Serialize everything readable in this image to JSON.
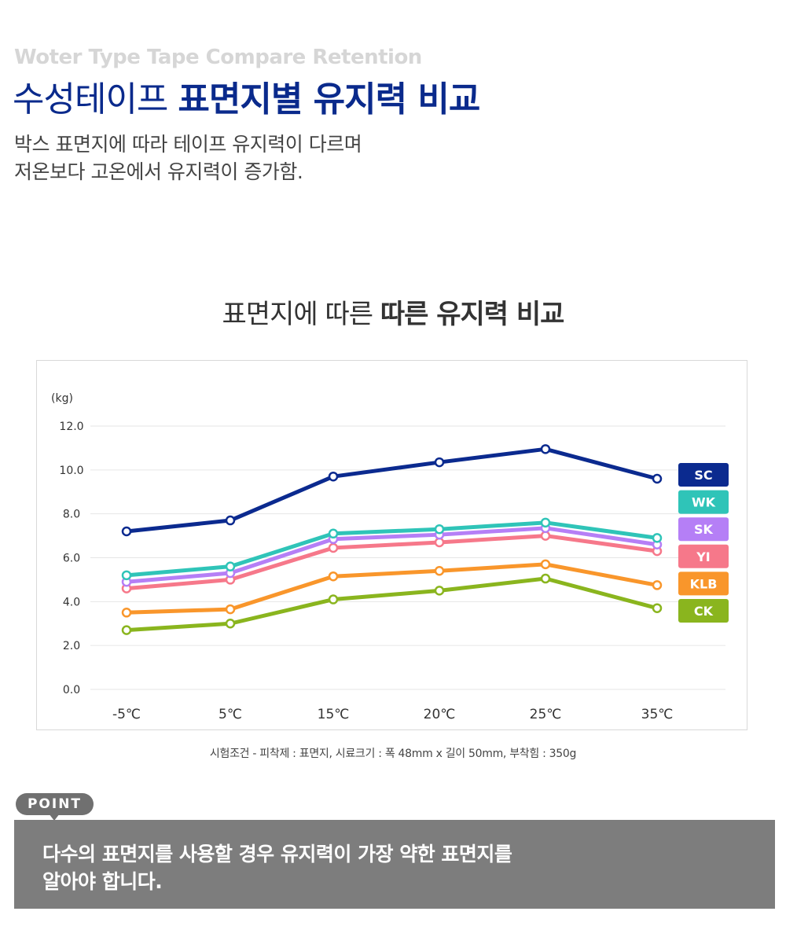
{
  "header": {
    "eng_title": "Woter Type Tape Compare Retention",
    "title_light": "수성테이프 ",
    "title_bold": "표면지별 유지력 비교",
    "desc_line1": "박스 표면지에 따라 테이프 유지력이 다르며",
    "desc_line2": "저온보다 고온에서 유지력이 증가함."
  },
  "chart_heading": {
    "light": "표면지에 따른 ",
    "bold": "따른 유지력 비교"
  },
  "chart_data": {
    "type": "line",
    "ylabel": "(kg)",
    "ylim": [
      0,
      12
    ],
    "yticks": [
      "0.0",
      "2.0",
      "4.0",
      "6.0",
      "8.0",
      "10.0",
      "12.0"
    ],
    "categories": [
      "-5℃",
      "5℃",
      "15℃",
      "20℃",
      "25℃",
      "35℃"
    ],
    "grid": true,
    "legend_position": "right",
    "series": [
      {
        "name": "SC",
        "color": "#0b2a8f",
        "values": [
          7.2,
          7.7,
          9.7,
          10.35,
          10.95,
          9.6
        ]
      },
      {
        "name": "WK",
        "color": "#2fc4b8",
        "values": [
          5.2,
          5.6,
          7.1,
          7.3,
          7.6,
          6.9
        ]
      },
      {
        "name": "SK",
        "color": "#b57ff6",
        "values": [
          4.9,
          5.3,
          6.85,
          7.05,
          7.35,
          6.6
        ]
      },
      {
        "name": "YI",
        "color": "#f6788a",
        "values": [
          4.6,
          5.0,
          6.45,
          6.7,
          7.0,
          6.3
        ]
      },
      {
        "name": "KLB",
        "color": "#f9962b",
        "values": [
          3.5,
          3.65,
          5.15,
          5.4,
          5.7,
          4.75
        ]
      },
      {
        "name": "CK",
        "color": "#8ab51e",
        "values": [
          2.7,
          3.0,
          4.1,
          4.5,
          5.05,
          3.7
        ]
      }
    ]
  },
  "test_conditions": "시험조건 -  피착제 : 표면지, 시료크기 : 폭 48mm x 길이 50mm, 부착힘 : 350g",
  "point": {
    "badge": "POINT",
    "line1": "다수의 표면지를 사용할 경우 유지력이 가장 약한 표면지를",
    "line2": "알아야 합니다."
  }
}
